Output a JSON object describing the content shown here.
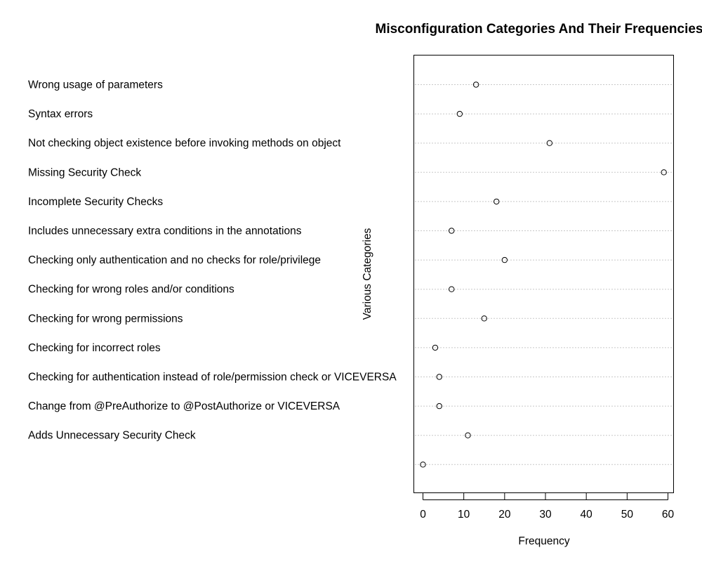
{
  "chart_data": {
    "type": "scatter",
    "subtype": "dotchart",
    "title": "Misconfiguration Categories And Their Frequencies",
    "xlabel": "Frequency",
    "ylabel": "Various Categories",
    "xlim": [
      -2,
      61
    ],
    "xticks": [
      0,
      10,
      20,
      30,
      40,
      50,
      60
    ],
    "grid": "horizontal-dotted",
    "legend": "none",
    "categories": [
      "Wrong usage of parameters",
      "Syntax errors",
      "Not checking object existence before invoking methods on object",
      "Missing Security Check",
      "Incomplete Security Checks",
      "Includes unnecessary extra conditions in the annotations",
      "Checking only authentication and no checks for role/privilege",
      "Checking for wrong roles and/or conditions",
      "Checking for wrong permissions",
      "Checking for incorrect roles",
      "Checking for authentication instead of role/permission check or VICEVERSA",
      "Change from @PreAuthorize to @PostAuthorize or VICEVERSA",
      "Adds Unnecessary Security Check",
      ""
    ],
    "values": [
      13,
      9,
      31,
      59,
      18,
      7,
      20,
      7,
      15,
      3,
      4,
      4,
      11,
      0
    ]
  },
  "colors": {
    "point": "#000000",
    "grid": "#c8c8c8",
    "frame": "#000000"
  }
}
